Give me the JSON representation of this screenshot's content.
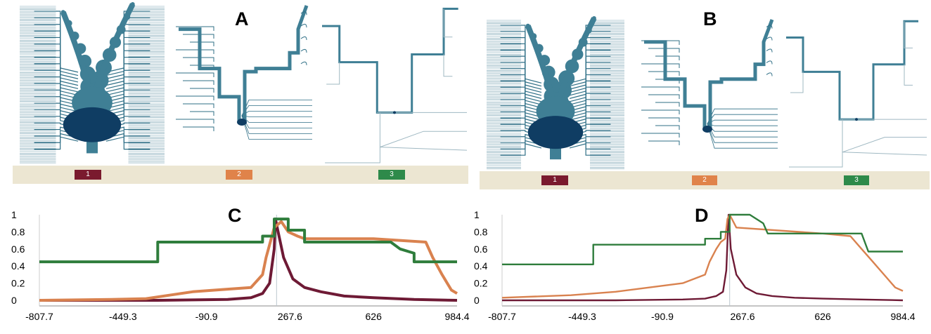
{
  "panels": {
    "a": {
      "label": "A"
    },
    "b": {
      "label": "B"
    },
    "c": {
      "label": "C"
    },
    "d": {
      "label": "D"
    }
  },
  "timeline": {
    "swatches": [
      {
        "label": "1",
        "color": "#7a1a2e"
      },
      {
        "label": "2",
        "color": "#e0834a"
      },
      {
        "label": "3",
        "color": "#2e8a4a"
      }
    ]
  },
  "colors": {
    "tree": "#2f6f86",
    "tree_fill": "#3f7f95",
    "node_dark": "#0f3d63",
    "series_1": "#6e1a35",
    "series_2": "#d9824f",
    "series_3": "#2f7d3c",
    "timeline_bg": "#ece6d2"
  },
  "chart_data": [
    {
      "type": "line",
      "panel": "C",
      "xticks": [
        "-807.7",
        "-449.3",
        "-90.9",
        "267.6",
        "626",
        "984.4"
      ],
      "yticks": [
        "1",
        "0.8",
        "0.6",
        "0.4",
        "0.2",
        "0"
      ],
      "xlim": [
        -807.7,
        984.4
      ],
      "ylim": [
        0,
        1
      ],
      "series": [
        {
          "color": "#6e1a35",
          "x": [
            -807.7,
            -300,
            0,
            100,
            150,
            180,
            200,
            205,
            215,
            240,
            280,
            330,
            400,
            500,
            626,
            800,
            984.4
          ],
          "y": [
            0,
            0,
            0.01,
            0.03,
            0.08,
            0.2,
            0.6,
            0.95,
            0.82,
            0.5,
            0.25,
            0.15,
            0.1,
            0.05,
            0.03,
            0.01,
            0
          ]
        },
        {
          "color": "#d9824f",
          "x": [
            -807.7,
            -500,
            -350,
            -250,
            -150,
            0,
            100,
            150,
            165,
            180,
            200,
            230,
            260,
            300,
            330,
            400,
            626,
            850,
            880,
            920,
            960,
            984.4
          ],
          "y": [
            0,
            0.01,
            0.02,
            0.06,
            0.1,
            0.13,
            0.15,
            0.3,
            0.5,
            0.65,
            0.85,
            0.92,
            0.8,
            0.75,
            0.72,
            0.72,
            0.72,
            0.68,
            0.5,
            0.3,
            0.12,
            0.08
          ]
        },
        {
          "color": "#2f7d3c",
          "x": [
            -807.7,
            -300,
            -300,
            150,
            150,
            200,
            200,
            260,
            260,
            330,
            330,
            400,
            626,
            700,
            740,
            800,
            800,
            984.4
          ],
          "y": [
            0.45,
            0.45,
            0.68,
            0.68,
            0.75,
            0.75,
            0.95,
            0.95,
            0.82,
            0.82,
            0.68,
            0.68,
            0.68,
            0.68,
            0.6,
            0.55,
            0.45,
            0.45
          ]
        }
      ]
    },
    {
      "type": "line",
      "panel": "D",
      "xticks": [
        "-807.7",
        "-449.3",
        "-90.9",
        "267.6",
        "626",
        "984.4"
      ],
      "yticks": [
        "1",
        "0.8",
        "0.6",
        "0.4",
        "0.2",
        "0"
      ],
      "xlim": [
        -807.7,
        984.4
      ],
      "ylim": [
        0,
        1
      ],
      "series": [
        {
          "color": "#6e1a35",
          "x": [
            -807.7,
            -300,
            0,
            100,
            150,
            180,
            195,
            205,
            215,
            240,
            280,
            330,
            400,
            500,
            626,
            800,
            984.4
          ],
          "y": [
            0,
            0,
            0.01,
            0.02,
            0.05,
            0.1,
            0.35,
            1.0,
            0.6,
            0.3,
            0.15,
            0.08,
            0.05,
            0.03,
            0.02,
            0.01,
            0
          ]
        },
        {
          "color": "#d9824f",
          "x": [
            -807.7,
            -500,
            -300,
            -150,
            0,
            100,
            120,
            150,
            170,
            190,
            200,
            210,
            240,
            626,
            750,
            800,
            850,
            900,
            950,
            984.4
          ],
          "y": [
            0.03,
            0.06,
            0.1,
            0.15,
            0.2,
            0.3,
            0.45,
            0.6,
            0.68,
            0.72,
            0.95,
            1.0,
            0.85,
            0.78,
            0.75,
            0.6,
            0.45,
            0.3,
            0.15,
            0.11
          ]
        },
        {
          "color": "#2f7d3c",
          "x": [
            -807.7,
            -400,
            -400,
            100,
            100,
            170,
            170,
            210,
            210,
            300,
            360,
            380,
            626,
            800,
            830,
            984.4
          ],
          "y": [
            0.42,
            0.42,
            0.65,
            0.65,
            0.72,
            0.72,
            0.8,
            0.8,
            1.0,
            1.0,
            0.9,
            0.78,
            0.78,
            0.78,
            0.57,
            0.57
          ]
        }
      ]
    }
  ]
}
